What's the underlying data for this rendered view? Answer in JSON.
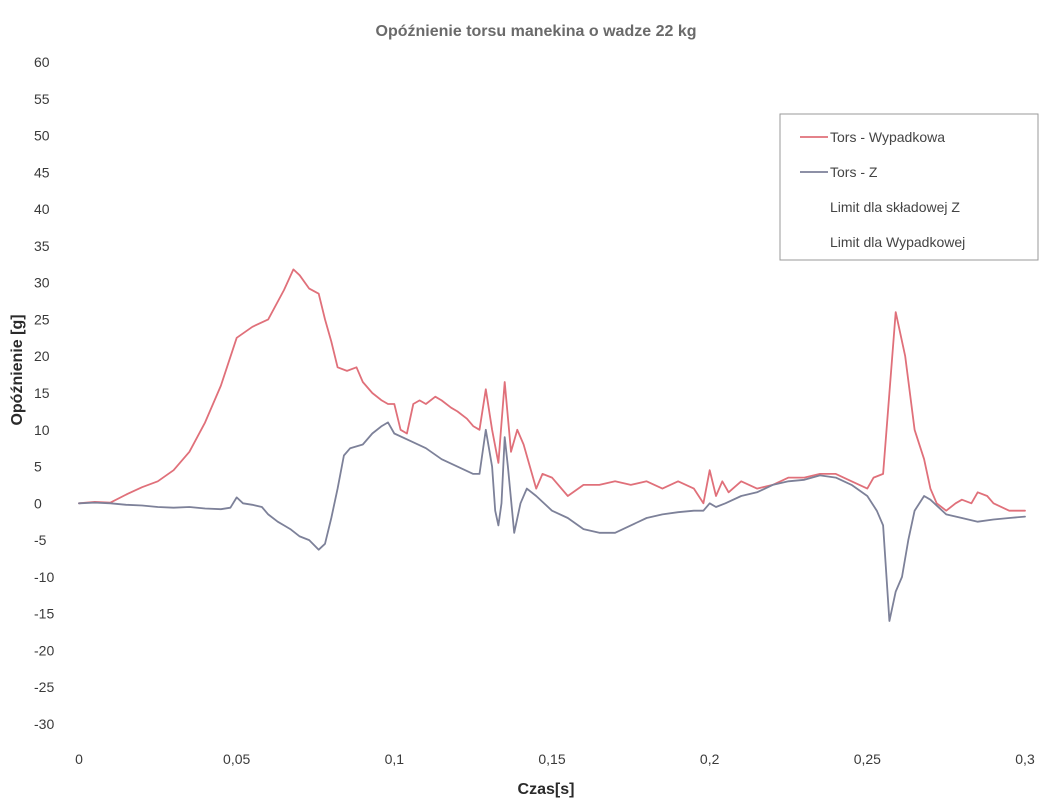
{
  "chart_data": {
    "type": "line",
    "title": "Opóźnienie torsu manekina o wadze 22 kg",
    "xlabel": "Czas[s]",
    "ylabel": "Opóźnienie [g]",
    "xlim": [
      0,
      0.3
    ],
    "ylim": [
      -30,
      60
    ],
    "x_ticks": [
      0,
      0.05,
      0.1,
      0.15,
      0.2,
      0.25,
      0.3
    ],
    "x_tick_labels": [
      "0",
      "0,05",
      "0,1",
      "0,15",
      "0,2",
      "0,25",
      "0,3"
    ],
    "y_ticks": [
      -30,
      -25,
      -20,
      -15,
      -10,
      -5,
      0,
      5,
      10,
      15,
      20,
      25,
      30,
      35,
      40,
      45,
      50,
      55,
      60
    ],
    "y_tick_labels": [
      "-30",
      "-25",
      "-20",
      "-15",
      "-10",
      "-5",
      "0",
      "5",
      "10",
      "15",
      "20",
      "25",
      "30",
      "35",
      "40",
      "45",
      "50",
      "55",
      "60"
    ],
    "grid": false,
    "legend_position": "top-right",
    "series": [
      {
        "name": "Tors - Wypadkowa",
        "color": "#e0707a",
        "points": [
          [
            0,
            0
          ],
          [
            0.005,
            0.2
          ],
          [
            0.01,
            0.1
          ],
          [
            0.015,
            1.2
          ],
          [
            0.02,
            2.2
          ],
          [
            0.025,
            3
          ],
          [
            0.03,
            4.5
          ],
          [
            0.035,
            7
          ],
          [
            0.04,
            11
          ],
          [
            0.045,
            16
          ],
          [
            0.05,
            22.5
          ],
          [
            0.055,
            24
          ],
          [
            0.06,
            25
          ],
          [
            0.065,
            29
          ],
          [
            0.068,
            31.8
          ],
          [
            0.07,
            31
          ],
          [
            0.073,
            29.2
          ],
          [
            0.076,
            28.5
          ],
          [
            0.078,
            25
          ],
          [
            0.08,
            22
          ],
          [
            0.082,
            18.5
          ],
          [
            0.085,
            18
          ],
          [
            0.088,
            18.5
          ],
          [
            0.09,
            16.5
          ],
          [
            0.093,
            15
          ],
          [
            0.096,
            14
          ],
          [
            0.098,
            13.5
          ],
          [
            0.1,
            13.5
          ],
          [
            0.102,
            10
          ],
          [
            0.104,
            9.5
          ],
          [
            0.106,
            13.5
          ],
          [
            0.108,
            14
          ],
          [
            0.11,
            13.5
          ],
          [
            0.113,
            14.5
          ],
          [
            0.115,
            14
          ],
          [
            0.118,
            13
          ],
          [
            0.12,
            12.5
          ],
          [
            0.123,
            11.5
          ],
          [
            0.125,
            10.5
          ],
          [
            0.127,
            10
          ],
          [
            0.129,
            15.5
          ],
          [
            0.131,
            10
          ],
          [
            0.133,
            5.5
          ],
          [
            0.135,
            16.5
          ],
          [
            0.137,
            7
          ],
          [
            0.139,
            10
          ],
          [
            0.141,
            8
          ],
          [
            0.143,
            5
          ],
          [
            0.145,
            2
          ],
          [
            0.147,
            4
          ],
          [
            0.15,
            3.5
          ],
          [
            0.155,
            1
          ],
          [
            0.16,
            2.5
          ],
          [
            0.165,
            2.5
          ],
          [
            0.17,
            3
          ],
          [
            0.175,
            2.5
          ],
          [
            0.18,
            3
          ],
          [
            0.185,
            2
          ],
          [
            0.19,
            3
          ],
          [
            0.195,
            2
          ],
          [
            0.198,
            0
          ],
          [
            0.2,
            4.5
          ],
          [
            0.202,
            1
          ],
          [
            0.204,
            3
          ],
          [
            0.206,
            1.5
          ],
          [
            0.21,
            3
          ],
          [
            0.215,
            2
          ],
          [
            0.22,
            2.5
          ],
          [
            0.225,
            3.5
          ],
          [
            0.23,
            3.5
          ],
          [
            0.235,
            4
          ],
          [
            0.24,
            4
          ],
          [
            0.245,
            3
          ],
          [
            0.25,
            2
          ],
          [
            0.252,
            3.5
          ],
          [
            0.255,
            4
          ],
          [
            0.257,
            15
          ],
          [
            0.259,
            26
          ],
          [
            0.262,
            20
          ],
          [
            0.265,
            10
          ],
          [
            0.268,
            6
          ],
          [
            0.27,
            2
          ],
          [
            0.272,
            0
          ],
          [
            0.275,
            -1
          ],
          [
            0.278,
            0
          ],
          [
            0.28,
            0.5
          ],
          [
            0.283,
            0
          ],
          [
            0.285,
            1.5
          ],
          [
            0.288,
            1
          ],
          [
            0.29,
            0
          ],
          [
            0.295,
            -1
          ],
          [
            0.3,
            -1
          ]
        ]
      },
      {
        "name": "Tors - Z",
        "color": "#7d8199",
        "points": [
          [
            0,
            0
          ],
          [
            0.005,
            0.1
          ],
          [
            0.01,
            0
          ],
          [
            0.015,
            -0.2
          ],
          [
            0.02,
            -0.3
          ],
          [
            0.025,
            -0.5
          ],
          [
            0.03,
            -0.6
          ],
          [
            0.035,
            -0.5
          ],
          [
            0.04,
            -0.7
          ],
          [
            0.045,
            -0.8
          ],
          [
            0.048,
            -0.6
          ],
          [
            0.05,
            0.8
          ],
          [
            0.052,
            0
          ],
          [
            0.055,
            -0.2
          ],
          [
            0.058,
            -0.5
          ],
          [
            0.06,
            -1.5
          ],
          [
            0.063,
            -2.5
          ],
          [
            0.065,
            -3
          ],
          [
            0.067,
            -3.5
          ],
          [
            0.07,
            -4.5
          ],
          [
            0.073,
            -5
          ],
          [
            0.076,
            -6.3
          ],
          [
            0.078,
            -5.5
          ],
          [
            0.08,
            -2
          ],
          [
            0.082,
            2
          ],
          [
            0.084,
            6.5
          ],
          [
            0.086,
            7.5
          ],
          [
            0.09,
            8
          ],
          [
            0.093,
            9.5
          ],
          [
            0.096,
            10.5
          ],
          [
            0.098,
            11
          ],
          [
            0.1,
            9.5
          ],
          [
            0.105,
            8.5
          ],
          [
            0.11,
            7.5
          ],
          [
            0.115,
            6
          ],
          [
            0.12,
            5
          ],
          [
            0.125,
            4
          ],
          [
            0.127,
            4
          ],
          [
            0.129,
            10
          ],
          [
            0.131,
            5
          ],
          [
            0.132,
            -1
          ],
          [
            0.133,
            -3
          ],
          [
            0.134,
            0
          ],
          [
            0.135,
            9
          ],
          [
            0.136,
            5
          ],
          [
            0.138,
            -4
          ],
          [
            0.14,
            0
          ],
          [
            0.142,
            2
          ],
          [
            0.145,
            1
          ],
          [
            0.15,
            -1
          ],
          [
            0.155,
            -2
          ],
          [
            0.16,
            -3.5
          ],
          [
            0.165,
            -4
          ],
          [
            0.17,
            -4
          ],
          [
            0.175,
            -3
          ],
          [
            0.18,
            -2
          ],
          [
            0.185,
            -1.5
          ],
          [
            0.19,
            -1.2
          ],
          [
            0.195,
            -1
          ],
          [
            0.198,
            -1
          ],
          [
            0.2,
            0
          ],
          [
            0.202,
            -0.5
          ],
          [
            0.205,
            0
          ],
          [
            0.21,
            1
          ],
          [
            0.215,
            1.5
          ],
          [
            0.22,
            2.5
          ],
          [
            0.225,
            3
          ],
          [
            0.23,
            3.2
          ],
          [
            0.235,
            3.8
          ],
          [
            0.24,
            3.5
          ],
          [
            0.245,
            2.5
          ],
          [
            0.25,
            1
          ],
          [
            0.253,
            -1
          ],
          [
            0.255,
            -3
          ],
          [
            0.257,
            -16
          ],
          [
            0.259,
            -12
          ],
          [
            0.261,
            -10
          ],
          [
            0.263,
            -5
          ],
          [
            0.265,
            -1
          ],
          [
            0.268,
            1
          ],
          [
            0.27,
            0.5
          ],
          [
            0.275,
            -1.5
          ],
          [
            0.28,
            -2
          ],
          [
            0.285,
            -2.5
          ],
          [
            0.29,
            -2.2
          ],
          [
            0.295,
            -2
          ],
          [
            0.3,
            -1.8
          ]
        ]
      },
      {
        "name": "Limit dla składowej Z",
        "color": "#ffffff",
        "points": []
      },
      {
        "name": "Limit dla Wypadkowej",
        "color": "#ffffff",
        "points": []
      }
    ]
  }
}
